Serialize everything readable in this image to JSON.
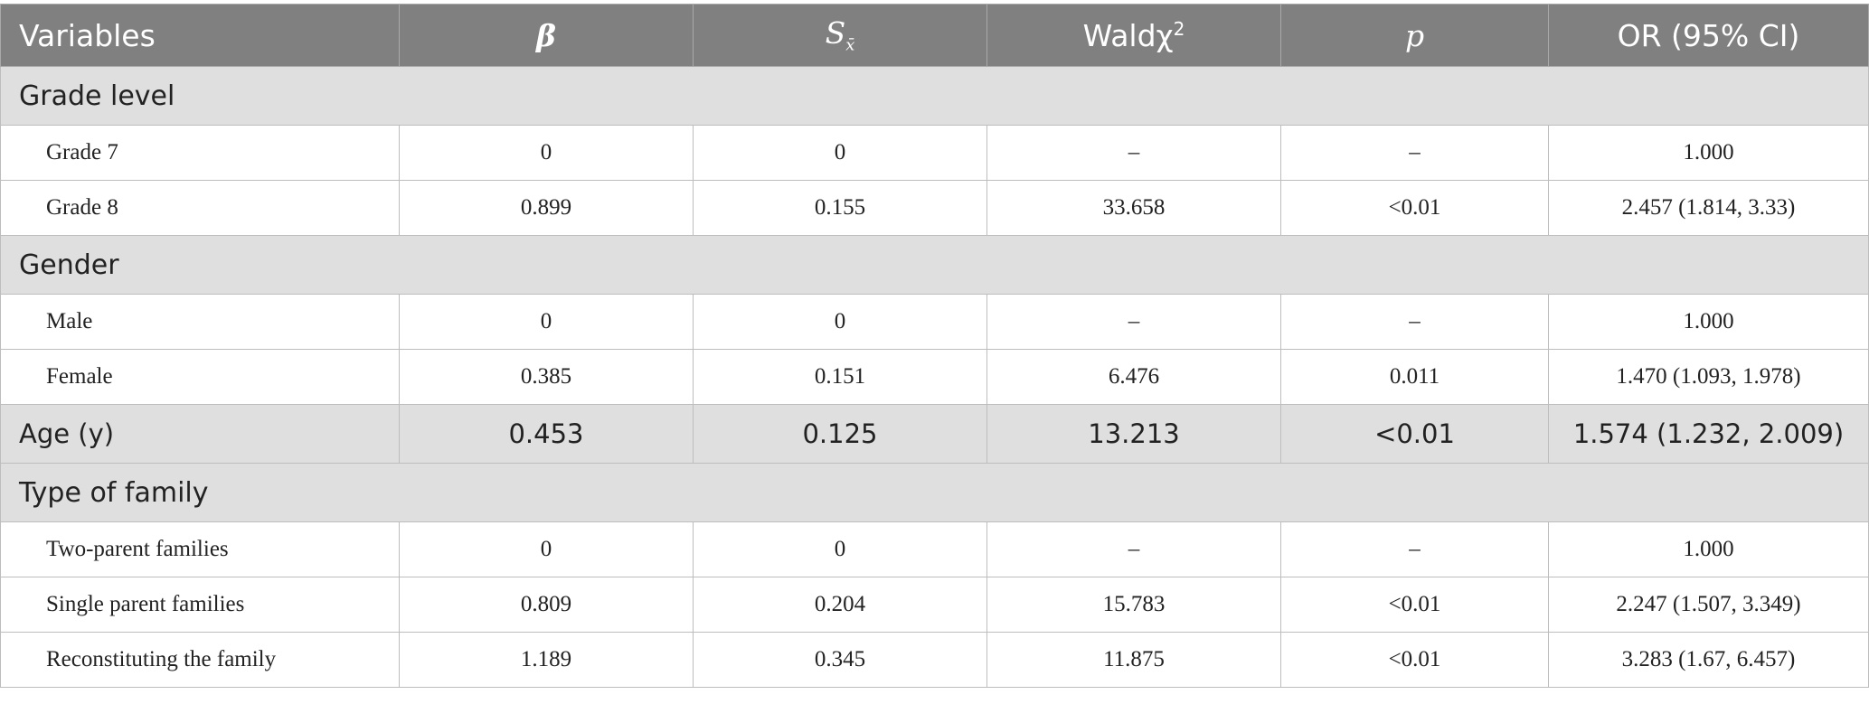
{
  "columns": {
    "variables": "Variables",
    "beta": "β",
    "se_main": "S",
    "se_sub": "x̄",
    "wald_main": "Waldχ",
    "wald_sup": "2",
    "p": "p",
    "or": "OR (95% CI)"
  },
  "sections": {
    "grade": "Grade level",
    "gender": "Gender",
    "family": "Type of family"
  },
  "rows": {
    "grade7": {
      "label": "Grade 7",
      "beta": "0",
      "se": "0",
      "wald": "–",
      "p": "–",
      "or": "1.000"
    },
    "grade8": {
      "label": "Grade 8",
      "beta": "0.899",
      "se": "0.155",
      "wald": "33.658",
      "p": "<0.01",
      "or": "2.457 (1.814, 3.33)"
    },
    "male": {
      "label": "Male",
      "beta": "0",
      "se": "0",
      "wald": "–",
      "p": "–",
      "or": "1.000"
    },
    "female": {
      "label": "Female",
      "beta": "0.385",
      "se": "0.151",
      "wald": "6.476",
      "p": "0.011",
      "or": "1.470 (1.093, 1.978)"
    },
    "age": {
      "label": "Age (y)",
      "beta": "0.453",
      "se": "0.125",
      "wald": "13.213",
      "p": "<0.01",
      "or": "1.574 (1.232, 2.009)"
    },
    "two_parent": {
      "label": "Two-parent families",
      "beta": "0",
      "se": "0",
      "wald": "–",
      "p": "–",
      "or": "1.000"
    },
    "single_parent": {
      "label": "Single parent families",
      "beta": "0.809",
      "se": "0.204",
      "wald": "15.783",
      "p": "<0.01",
      "or": "2.247 (1.507, 3.349)"
    },
    "reconstituting": {
      "label": "Reconstituting the family",
      "beta": "1.189",
      "se": "0.345",
      "wald": "11.875",
      "p": "<0.01",
      "or": "3.283 (1.67, 6.457)"
    }
  }
}
